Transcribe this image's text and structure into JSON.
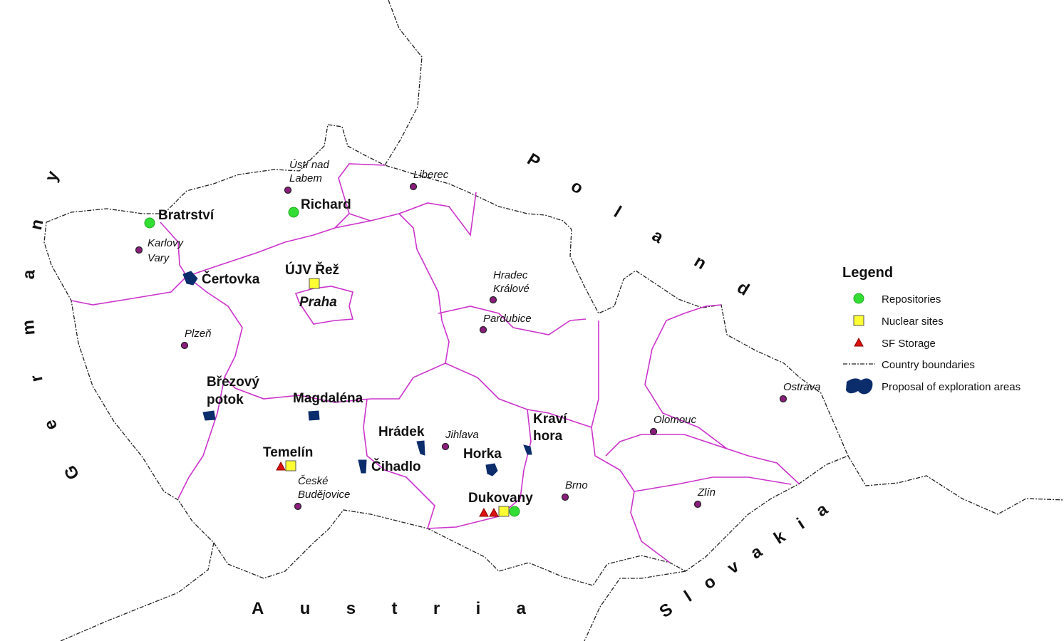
{
  "countries": {
    "germany": "Germany",
    "poland": "Poland",
    "austria": "Austria",
    "slovakia": "Slovakia"
  },
  "cities": [
    "Ústí nad",
    "Labem",
    "Liberec",
    "Karlovy",
    "Vary",
    "Hradec",
    "Králové",
    "Pardubice",
    "Plzeň",
    "Praha",
    "Jihlava",
    "České",
    "Budějovice",
    "Brno",
    "Olomouc",
    "Ostrava",
    "Zlín"
  ],
  "sites": [
    "Bratrství",
    "Richard",
    "Čertovka",
    "ÚJV Řež",
    "Březový",
    "potok",
    "Magdaléna",
    "Hrádek",
    "Kraví",
    "hora",
    "Temelín",
    "Čihadlo",
    "Horka",
    "Dukovany"
  ],
  "legend": {
    "title": "Legend",
    "items": [
      "Repositories",
      "Nuclear sites",
      "SF Storage",
      "Country boundaries",
      "Proposal of exploration areas"
    ]
  },
  "colors": {
    "repository": "#33dd33",
    "nuclear_site": "#ffff33",
    "sf_storage": "#dd1111",
    "region_boundary": "#cc33cc",
    "exploration_area": "#0c2d6b",
    "city": "#8a1d7c"
  }
}
